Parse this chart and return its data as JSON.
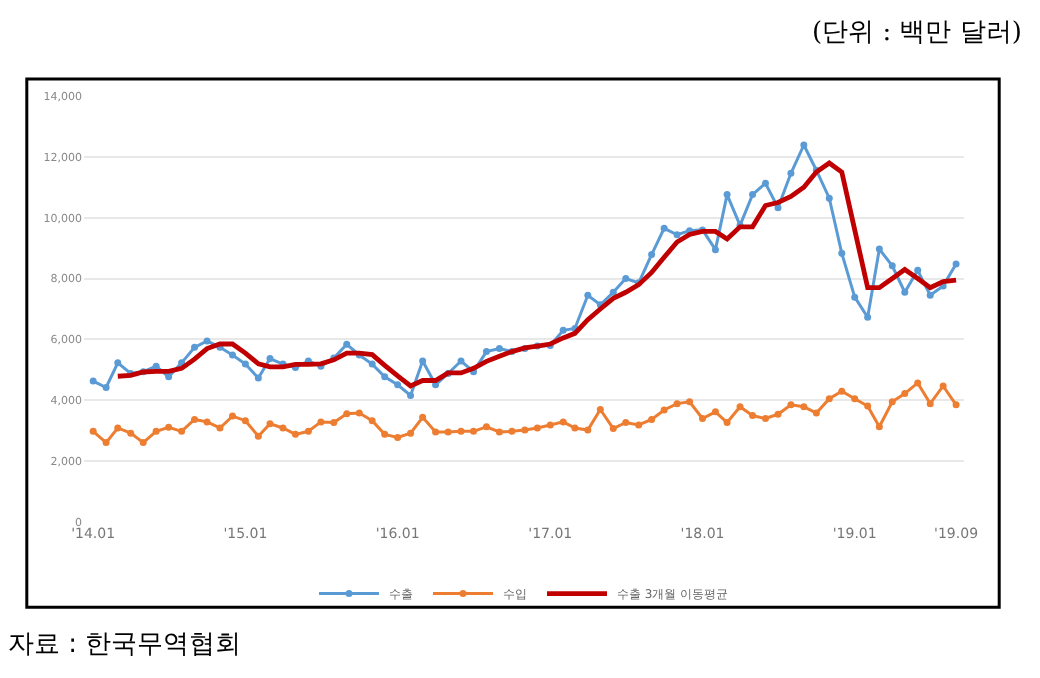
{
  "chart_data": {
    "type": "line",
    "annotations": [
      "(단위 : 백만 달러)",
      "자료 : 한국무역협회"
    ],
    "x": [
      "2014-01",
      "2014-02",
      "2014-03",
      "2014-04",
      "2014-05",
      "2014-06",
      "2014-07",
      "2014-08",
      "2014-09",
      "2014-10",
      "2014-11",
      "2014-12",
      "2015-01",
      "2015-02",
      "2015-03",
      "2015-04",
      "2015-05",
      "2015-06",
      "2015-07",
      "2015-08",
      "2015-09",
      "2015-10",
      "2015-11",
      "2015-12",
      "2016-01",
      "2016-02",
      "2016-03",
      "2016-04",
      "2016-05",
      "2016-06",
      "2016-07",
      "2016-08",
      "2016-09",
      "2016-10",
      "2016-11",
      "2016-12",
      "2017-01",
      "2017-02",
      "2017-03",
      "2017-04",
      "2017-05",
      "2017-06",
      "2017-07",
      "2017-08",
      "2017-09",
      "2017-10",
      "2017-11",
      "2017-12",
      "2018-01",
      "2018-02",
      "2018-03",
      "2018-04",
      "2018-05",
      "2018-06",
      "2018-07",
      "2018-08",
      "2018-09",
      "2018-10",
      "2018-11",
      "2018-12",
      "2019-01",
      "2019-02",
      "2019-03",
      "2019-04",
      "2019-05",
      "2019-06",
      "2019-07",
      "2019-08",
      "2019-09"
    ],
    "series": [
      {
        "name": "수출",
        "color": "#5b9bd5",
        "marker": "circle",
        "values": [
          4630,
          4420,
          5230,
          4880,
          4940,
          5120,
          4770,
          5230,
          5740,
          5950,
          5740,
          5490,
          5190,
          4730,
          5370,
          5190,
          5080,
          5290,
          5120,
          5390,
          5840,
          5490,
          5190,
          4770,
          4510,
          4160,
          5290,
          4510,
          4880,
          5290,
          4940,
          5600,
          5700,
          5600,
          5700,
          5780,
          5800,
          6300,
          6360,
          7450,
          7140,
          7550,
          8000,
          7860,
          8790,
          9650,
          9440,
          9570,
          9600,
          8950,
          10760,
          9750,
          10760,
          11130,
          10330,
          11460,
          12390,
          11560,
          10640,
          8830,
          7390,
          6730,
          8970,
          8420,
          7550,
          8270,
          7450,
          7760,
          8480
        ]
      },
      {
        "name": "수입",
        "color": "#ed7d31",
        "marker": "circle",
        "values": [
          2980,
          2610,
          3090,
          2920,
          2610,
          2980,
          3110,
          2980,
          3370,
          3290,
          3090,
          3480,
          3330,
          2820,
          3230,
          3090,
          2880,
          2980,
          3290,
          3270,
          3560,
          3580,
          3330,
          2880,
          2780,
          2920,
          3440,
          2960,
          2960,
          2980,
          2980,
          3130,
          2960,
          2980,
          3020,
          3090,
          3190,
          3290,
          3090,
          3020,
          3700,
          3070,
          3270,
          3190,
          3370,
          3680,
          3890,
          3950,
          3400,
          3620,
          3270,
          3790,
          3500,
          3400,
          3540,
          3850,
          3790,
          3580,
          4050,
          4300,
          4050,
          3810,
          3130,
          3950,
          4220,
          4570,
          3890,
          4470,
          3850
        ]
      },
      {
        "name": "수출 3개월 이동평균",
        "color": "#c00000",
        "marker": "none",
        "values": [
          null,
          null,
          4790,
          4820,
          4930,
          4950,
          4950,
          5050,
          5350,
          5700,
          5850,
          5850,
          5550,
          5200,
          5100,
          5100,
          5180,
          5180,
          5200,
          5330,
          5550,
          5550,
          5500,
          5150,
          4800,
          4470,
          4650,
          4650,
          4900,
          4900,
          5050,
          5280,
          5450,
          5600,
          5720,
          5780,
          5850,
          6050,
          6200,
          6650,
          7000,
          7350,
          7550,
          7800,
          8200,
          8700,
          9200,
          9450,
          9550,
          9550,
          9300,
          9700,
          9700,
          10400,
          10500,
          10700,
          11000,
          11500,
          11800,
          11500,
          9600,
          7700,
          7700,
          8000,
          8300,
          8000,
          7700,
          7900,
          7950
        ]
      }
    ],
    "xlim": [
      "2013-12-10",
      "2019-09-20"
    ],
    "xticks": [
      {
        "value": "2014-01",
        "label": "'14.01"
      },
      {
        "value": "2015-01",
        "label": "'15.01"
      },
      {
        "value": "2016-01",
        "label": "'16.01"
      },
      {
        "value": "2017-01",
        "label": "'17.01"
      },
      {
        "value": "2018-01",
        "label": "'18.01"
      },
      {
        "value": "2019-01",
        "label": "'19.01"
      },
      {
        "value": "2019-09",
        "label": "'19.09"
      }
    ],
    "ylim": [
      0,
      14000
    ],
    "yticks": [
      {
        "value": 0,
        "label": "0"
      },
      {
        "value": 2000,
        "label": "2,000"
      },
      {
        "value": 4000,
        "label": "4,000"
      },
      {
        "value": 6000,
        "label": "6,000"
      },
      {
        "value": 8000,
        "label": "8,000"
      },
      {
        "value": 10000,
        "label": "10,000"
      },
      {
        "value": 12000,
        "label": "12,000"
      },
      {
        "value": 14000,
        "label": "14,000"
      }
    ],
    "grid": "y",
    "legend": "bottom",
    "line_style": "solid"
  }
}
